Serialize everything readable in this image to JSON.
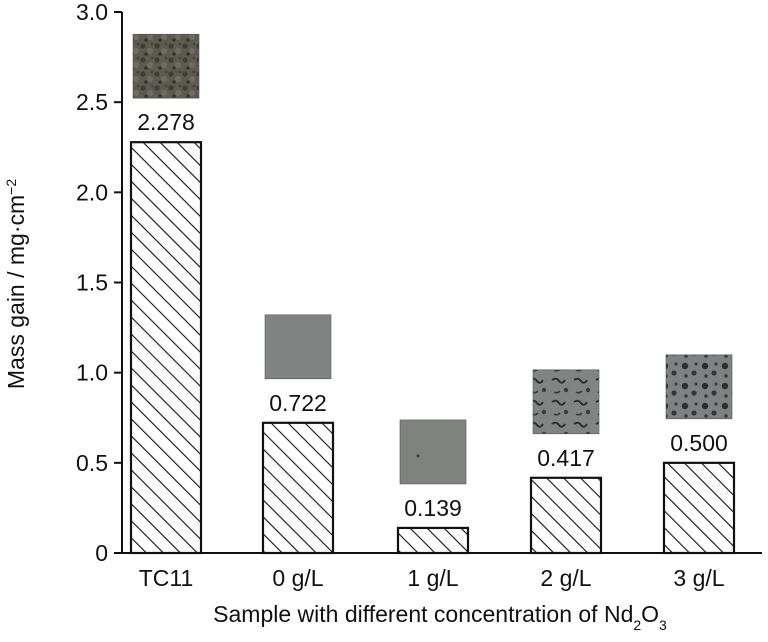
{
  "chart_data": {
    "type": "bar",
    "title": "",
    "categories": [
      "TC11",
      "0 g/L",
      "1 g/L",
      "2 g/L",
      "3 g/L"
    ],
    "values": [
      2.278,
      0.722,
      0.139,
      0.417,
      0.5
    ],
    "data_labels": [
      "2.278",
      "0.722",
      "0.139",
      "0.417",
      "0.500"
    ],
    "xlabel": {
      "main": "Sample with different concentration of Nd",
      "sub1": "2",
      "mid": "O",
      "sub2": "3"
    },
    "ylabel": {
      "main": "Mass gain / mg·cm",
      "sup": "−2"
    },
    "ylim": [
      0,
      3.0
    ],
    "yticks": [
      "0",
      "0.5",
      "1.0",
      "1.5",
      "2.0",
      "2.5",
      "3.0"
    ],
    "ytick_values": [
      0,
      0.5,
      1.0,
      1.5,
      2.0,
      2.5,
      3.0
    ],
    "bar_fill": "hatched",
    "grid": false,
    "legend": "none",
    "inset_images": [
      "TC11 surface micrograph",
      "0 g/L surface micrograph",
      "1 g/L surface micrograph",
      "2 g/L surface micrograph",
      "3 g/L surface micrograph"
    ]
  },
  "colors": {
    "axis": "#111111",
    "bar_outline": "#111111",
    "hatch": "#111111",
    "tc11_image": "#5a5a4e",
    "clean_image": "#7f827f",
    "pitted_image": "#7c7f7f"
  }
}
